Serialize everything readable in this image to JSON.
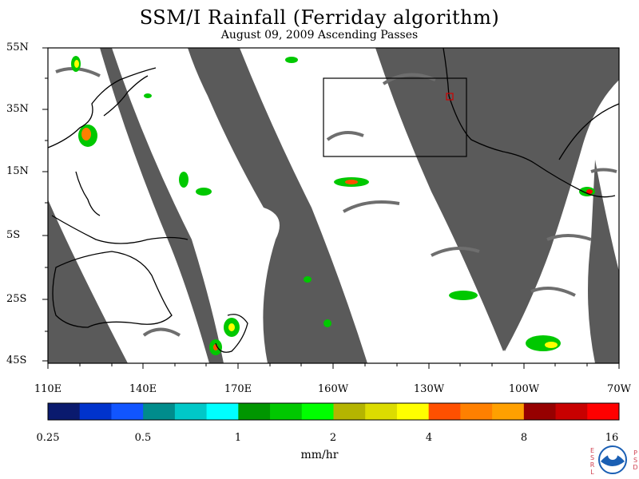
{
  "title": "SSM/I Rainfall (Ferriday algorithm)",
  "subtitle": "August 09, 2009  Ascending Passes",
  "y_labels": [
    "55N",
    "35N",
    "15N",
    "5S",
    "25S",
    "45S"
  ],
  "x_labels": [
    "110E",
    "140E",
    "170E",
    "160W",
    "130W",
    "100W",
    "70W"
  ],
  "colorbar": {
    "colors": [
      "#0a1a6e",
      "#0033cc",
      "#1155ff",
      "#008c8c",
      "#00c8c8",
      "#00ffff",
      "#009600",
      "#00c800",
      "#00ff00",
      "#b4b400",
      "#dcdc00",
      "#ffff00",
      "#ff5000",
      "#ff8000",
      "#ffa000",
      "#960000",
      "#c80000",
      "#ff0000"
    ],
    "labels": [
      "0.25",
      "0.5",
      "1",
      "2",
      "4",
      "8",
      "16"
    ]
  },
  "units": "mm/hr",
  "logo": {
    "left_letters": "ESRL",
    "right_letters": "PSD",
    "center": "NOAA"
  },
  "colors": {
    "swath_gap": "#5a5a5a",
    "land": "#000000",
    "box": "#000000"
  }
}
